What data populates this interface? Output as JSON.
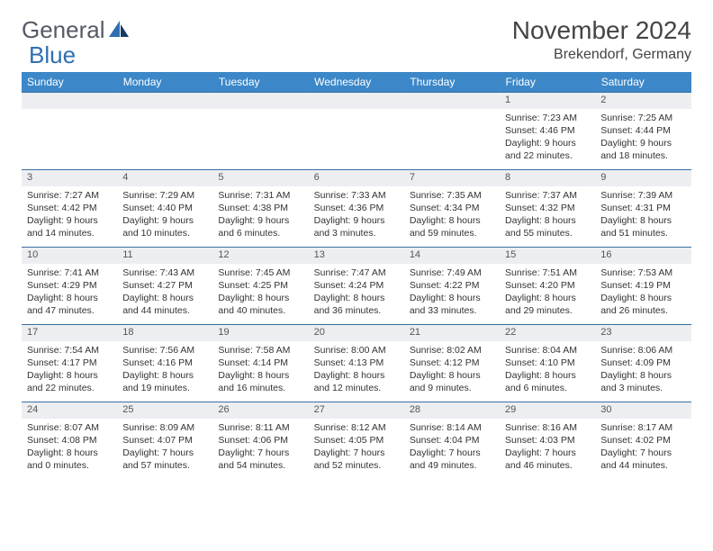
{
  "brand": {
    "part1": "General",
    "part2": "Blue"
  },
  "title": "November 2024",
  "location": "Brekendorf, Germany",
  "colors": {
    "header_bg": "#3b87c8",
    "header_text": "#ffffff",
    "daynum_bg": "#eceef1",
    "row_border": "#3b6fa0",
    "text": "#333333",
    "brand_gray": "#555a66",
    "brand_blue": "#2f6fb0",
    "background": "#ffffff"
  },
  "weekdays": [
    "Sunday",
    "Monday",
    "Tuesday",
    "Wednesday",
    "Thursday",
    "Friday",
    "Saturday"
  ],
  "weeks": [
    {
      "nums": [
        "",
        "",
        "",
        "",
        "",
        "1",
        "2"
      ],
      "cells": [
        null,
        null,
        null,
        null,
        null,
        {
          "sr": "Sunrise: 7:23 AM",
          "ss": "Sunset: 4:46 PM",
          "d1": "Daylight: 9 hours",
          "d2": "and 22 minutes."
        },
        {
          "sr": "Sunrise: 7:25 AM",
          "ss": "Sunset: 4:44 PM",
          "d1": "Daylight: 9 hours",
          "d2": "and 18 minutes."
        }
      ]
    },
    {
      "nums": [
        "3",
        "4",
        "5",
        "6",
        "7",
        "8",
        "9"
      ],
      "cells": [
        {
          "sr": "Sunrise: 7:27 AM",
          "ss": "Sunset: 4:42 PM",
          "d1": "Daylight: 9 hours",
          "d2": "and 14 minutes."
        },
        {
          "sr": "Sunrise: 7:29 AM",
          "ss": "Sunset: 4:40 PM",
          "d1": "Daylight: 9 hours",
          "d2": "and 10 minutes."
        },
        {
          "sr": "Sunrise: 7:31 AM",
          "ss": "Sunset: 4:38 PM",
          "d1": "Daylight: 9 hours",
          "d2": "and 6 minutes."
        },
        {
          "sr": "Sunrise: 7:33 AM",
          "ss": "Sunset: 4:36 PM",
          "d1": "Daylight: 9 hours",
          "d2": "and 3 minutes."
        },
        {
          "sr": "Sunrise: 7:35 AM",
          "ss": "Sunset: 4:34 PM",
          "d1": "Daylight: 8 hours",
          "d2": "and 59 minutes."
        },
        {
          "sr": "Sunrise: 7:37 AM",
          "ss": "Sunset: 4:32 PM",
          "d1": "Daylight: 8 hours",
          "d2": "and 55 minutes."
        },
        {
          "sr": "Sunrise: 7:39 AM",
          "ss": "Sunset: 4:31 PM",
          "d1": "Daylight: 8 hours",
          "d2": "and 51 minutes."
        }
      ]
    },
    {
      "nums": [
        "10",
        "11",
        "12",
        "13",
        "14",
        "15",
        "16"
      ],
      "cells": [
        {
          "sr": "Sunrise: 7:41 AM",
          "ss": "Sunset: 4:29 PM",
          "d1": "Daylight: 8 hours",
          "d2": "and 47 minutes."
        },
        {
          "sr": "Sunrise: 7:43 AM",
          "ss": "Sunset: 4:27 PM",
          "d1": "Daylight: 8 hours",
          "d2": "and 44 minutes."
        },
        {
          "sr": "Sunrise: 7:45 AM",
          "ss": "Sunset: 4:25 PM",
          "d1": "Daylight: 8 hours",
          "d2": "and 40 minutes."
        },
        {
          "sr": "Sunrise: 7:47 AM",
          "ss": "Sunset: 4:24 PM",
          "d1": "Daylight: 8 hours",
          "d2": "and 36 minutes."
        },
        {
          "sr": "Sunrise: 7:49 AM",
          "ss": "Sunset: 4:22 PM",
          "d1": "Daylight: 8 hours",
          "d2": "and 33 minutes."
        },
        {
          "sr": "Sunrise: 7:51 AM",
          "ss": "Sunset: 4:20 PM",
          "d1": "Daylight: 8 hours",
          "d2": "and 29 minutes."
        },
        {
          "sr": "Sunrise: 7:53 AM",
          "ss": "Sunset: 4:19 PM",
          "d1": "Daylight: 8 hours",
          "d2": "and 26 minutes."
        }
      ]
    },
    {
      "nums": [
        "17",
        "18",
        "19",
        "20",
        "21",
        "22",
        "23"
      ],
      "cells": [
        {
          "sr": "Sunrise: 7:54 AM",
          "ss": "Sunset: 4:17 PM",
          "d1": "Daylight: 8 hours",
          "d2": "and 22 minutes."
        },
        {
          "sr": "Sunrise: 7:56 AM",
          "ss": "Sunset: 4:16 PM",
          "d1": "Daylight: 8 hours",
          "d2": "and 19 minutes."
        },
        {
          "sr": "Sunrise: 7:58 AM",
          "ss": "Sunset: 4:14 PM",
          "d1": "Daylight: 8 hours",
          "d2": "and 16 minutes."
        },
        {
          "sr": "Sunrise: 8:00 AM",
          "ss": "Sunset: 4:13 PM",
          "d1": "Daylight: 8 hours",
          "d2": "and 12 minutes."
        },
        {
          "sr": "Sunrise: 8:02 AM",
          "ss": "Sunset: 4:12 PM",
          "d1": "Daylight: 8 hours",
          "d2": "and 9 minutes."
        },
        {
          "sr": "Sunrise: 8:04 AM",
          "ss": "Sunset: 4:10 PM",
          "d1": "Daylight: 8 hours",
          "d2": "and 6 minutes."
        },
        {
          "sr": "Sunrise: 8:06 AM",
          "ss": "Sunset: 4:09 PM",
          "d1": "Daylight: 8 hours",
          "d2": "and 3 minutes."
        }
      ]
    },
    {
      "nums": [
        "24",
        "25",
        "26",
        "27",
        "28",
        "29",
        "30"
      ],
      "cells": [
        {
          "sr": "Sunrise: 8:07 AM",
          "ss": "Sunset: 4:08 PM",
          "d1": "Daylight: 8 hours",
          "d2": "and 0 minutes."
        },
        {
          "sr": "Sunrise: 8:09 AM",
          "ss": "Sunset: 4:07 PM",
          "d1": "Daylight: 7 hours",
          "d2": "and 57 minutes."
        },
        {
          "sr": "Sunrise: 8:11 AM",
          "ss": "Sunset: 4:06 PM",
          "d1": "Daylight: 7 hours",
          "d2": "and 54 minutes."
        },
        {
          "sr": "Sunrise: 8:12 AM",
          "ss": "Sunset: 4:05 PM",
          "d1": "Daylight: 7 hours",
          "d2": "and 52 minutes."
        },
        {
          "sr": "Sunrise: 8:14 AM",
          "ss": "Sunset: 4:04 PM",
          "d1": "Daylight: 7 hours",
          "d2": "and 49 minutes."
        },
        {
          "sr": "Sunrise: 8:16 AM",
          "ss": "Sunset: 4:03 PM",
          "d1": "Daylight: 7 hours",
          "d2": "and 46 minutes."
        },
        {
          "sr": "Sunrise: 8:17 AM",
          "ss": "Sunset: 4:02 PM",
          "d1": "Daylight: 7 hours",
          "d2": "and 44 minutes."
        }
      ]
    }
  ]
}
